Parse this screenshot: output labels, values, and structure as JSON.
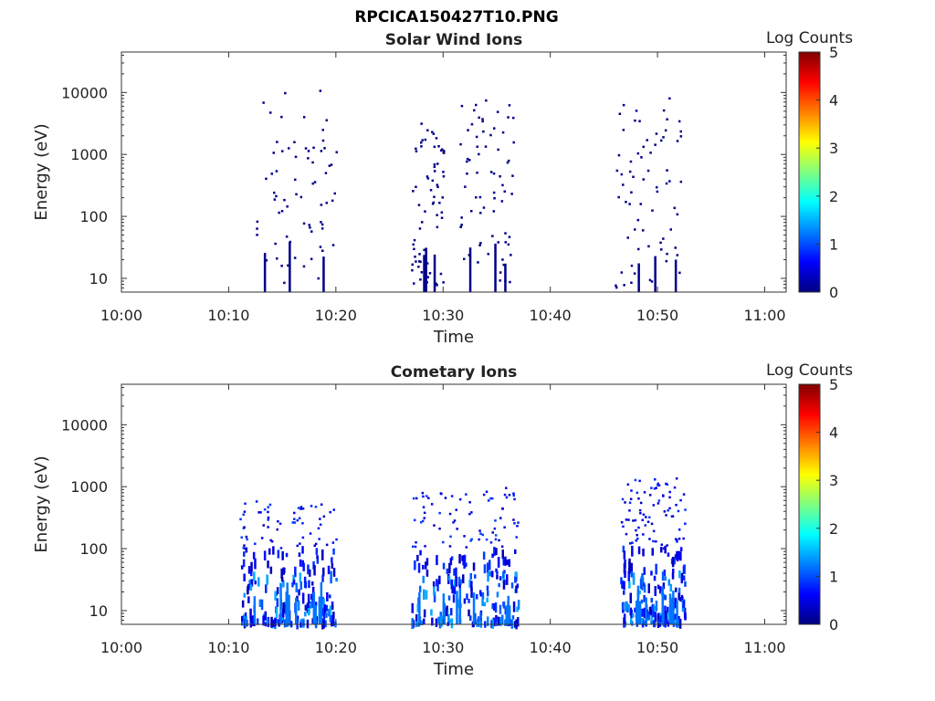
{
  "figure": {
    "title": "RPCICA150427T10.PNG"
  },
  "colorscale": {
    "stops": [
      "#00007f",
      "#0000ff",
      "#007fff",
      "#00ffff",
      "#7fff7f",
      "#ffff00",
      "#ff7f00",
      "#ff0000",
      "#7f0000"
    ]
  },
  "chart_data": [
    {
      "type": "heatmap",
      "title": "Solar Wind Ions",
      "xlabel": "Time",
      "ylabel": "Energy (eV)",
      "x_ticks": [
        "10:00",
        "10:10",
        "10:20",
        "10:30",
        "10:40",
        "10:50",
        "11:00"
      ],
      "xlim_minutes": [
        0,
        62
      ],
      "y_scale": "log",
      "y_ticks": [
        "10",
        "100",
        "1000",
        "10000"
      ],
      "ylim": [
        6,
        45000
      ],
      "colorbar": {
        "label": "Log Counts",
        "ticks": [
          "0",
          "1",
          "2",
          "3",
          "4",
          "5"
        ],
        "range": [
          0,
          5
        ]
      },
      "clusters": [
        {
          "t_start": 12.5,
          "t_end": 20.0,
          "e_min": 8,
          "e_max": 11000,
          "approx_log_counts": 0.1
        },
        {
          "t_start": 27.0,
          "t_end": 30.0,
          "e_min": 7,
          "e_max": 4200,
          "approx_log_counts": 0.1
        },
        {
          "t_start": 31.5,
          "t_end": 36.5,
          "e_min": 8,
          "e_max": 8000,
          "approx_log_counts": 0.1
        },
        {
          "t_start": 46.0,
          "t_end": 52.5,
          "e_min": 7,
          "e_max": 11000,
          "approx_log_counts": 0.1
        }
      ]
    },
    {
      "type": "heatmap",
      "title": "Cometary Ions",
      "xlabel": "Time",
      "ylabel": "Energy (eV)",
      "x_ticks": [
        "10:00",
        "10:10",
        "10:20",
        "10:30",
        "10:40",
        "10:50",
        "11:00"
      ],
      "xlim_minutes": [
        0,
        62
      ],
      "y_scale": "log",
      "y_ticks": [
        "10",
        "100",
        "1000",
        "10000"
      ],
      "ylim": [
        6,
        45000
      ],
      "colorbar": {
        "label": "Log Counts",
        "ticks": [
          "0",
          "1",
          "2",
          "3",
          "4",
          "5"
        ],
        "range": [
          0,
          5
        ]
      },
      "clusters": [
        {
          "t_start": 11.0,
          "t_end": 20.0,
          "e_min": 6,
          "e_max": 600,
          "approx_log_counts": 0.8
        },
        {
          "t_start": 27.0,
          "t_end": 37.0,
          "e_min": 6,
          "e_max": 950,
          "approx_log_counts": 0.8
        },
        {
          "t_start": 46.5,
          "t_end": 52.5,
          "e_min": 6,
          "e_max": 1400,
          "approx_log_counts": 0.8
        }
      ]
    }
  ]
}
